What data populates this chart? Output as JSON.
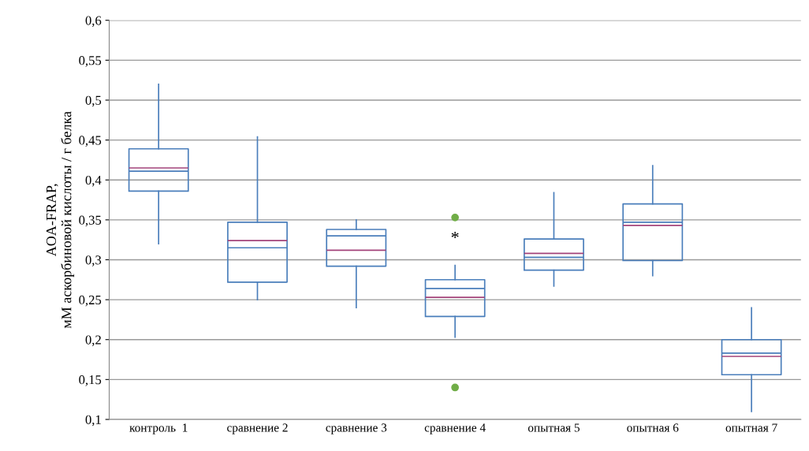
{
  "chart_data": {
    "type": "box",
    "ylabel": "AOA-FRAP,\nмМ аскорбиновой кислоты / г белка",
    "categories": [
      "контроль  1",
      "сравнение 2",
      "сравнение 3",
      "сравнение 4",
      "опытная 5",
      "опытная 6",
      "опытная 7"
    ],
    "series": [
      {
        "color": "#4a7ebb",
        "boxes": [
          {
            "low": 0.32,
            "q1": 0.386,
            "median": 0.411,
            "q3": 0.439,
            "high": 0.52,
            "mean": 0.415
          },
          {
            "low": 0.25,
            "q1": 0.272,
            "median": 0.315,
            "q3": 0.347,
            "high": 0.454,
            "mean": 0.324
          },
          {
            "low": 0.24,
            "q1": 0.292,
            "median": 0.33,
            "q3": 0.338,
            "high": 0.35,
            "mean": 0.312
          },
          {
            "low": 0.203,
            "q1": 0.229,
            "median": 0.264,
            "q3": 0.275,
            "high": 0.293,
            "mean": 0.253,
            "outliers": [
              0.353,
              0.14
            ]
          },
          {
            "low": 0.267,
            "q1": 0.287,
            "median": 0.303,
            "q3": 0.326,
            "high": 0.384,
            "mean": 0.308
          },
          {
            "low": 0.28,
            "q1": 0.299,
            "median": 0.347,
            "q3": 0.37,
            "high": 0.418,
            "mean": 0.343
          },
          {
            "low": 0.11,
            "q1": 0.156,
            "median": 0.183,
            "q3": 0.2,
            "high": 0.24,
            "mean": 0.179
          }
        ]
      }
    ],
    "annotations": [
      "*"
    ],
    "ylim": [
      0.1,
      0.6
    ],
    "yticks": [
      {
        "value": 0.1,
        "label": "0,1"
      },
      {
        "value": 0.15,
        "label": "0,15"
      },
      {
        "value": 0.2,
        "label": "0,2"
      },
      {
        "value": 0.25,
        "label": "0,25"
      },
      {
        "value": 0.3,
        "label": "0,3"
      },
      {
        "value": 0.35,
        "label": "0,35"
      },
      {
        "value": 0.4,
        "label": "0,4"
      },
      {
        "value": 0.45,
        "label": "0,45"
      },
      {
        "value": 0.5,
        "label": "0,5"
      },
      {
        "value": 0.55,
        "label": "0,55"
      },
      {
        "value": 0.6,
        "label": "0,6"
      }
    ],
    "grid": "y"
  }
}
